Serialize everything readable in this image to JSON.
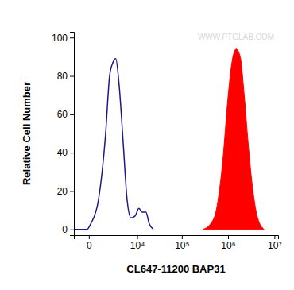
{
  "chart_data": {
    "type": "line",
    "x_label": "CL647-11200 BAP31",
    "y_label": "Relative Cell Number",
    "annotations": [
      "WWW.PTGLAB.COM"
    ],
    "log": "x",
    "x": [
      -1000,
      -600,
      -100,
      100,
      600,
      1300,
      1800,
      2300,
      2800,
      3500,
      4500,
      5700,
      7100,
      8900,
      11000,
      13000,
      16000,
      19000,
      23500,
      285000,
      422000,
      557000,
      764000,
      1009000,
      1230000,
      1500000,
      1830000,
      2230000,
      2710000,
      3440000,
      4350000,
      5980000
    ],
    "series": [
      {
        "color": "#1a1a8c",
        "type": "line",
        "values": [
          0,
          0,
          0,
          3,
          15,
          50,
          80,
          87,
          89,
          75,
          45,
          15,
          6,
          7,
          11,
          9,
          9,
          3,
          0,
          null,
          null,
          null,
          null,
          null,
          null,
          null,
          null,
          null,
          null,
          null,
          null,
          null
        ]
      },
      {
        "color": "#ff0000",
        "type": "area",
        "values": [
          null,
          null,
          null,
          null,
          null,
          null,
          null,
          null,
          null,
          null,
          null,
          null,
          null,
          null,
          null,
          null,
          null,
          null,
          null,
          0,
          3,
          10,
          35,
          70,
          88,
          94,
          90,
          70,
          45,
          20,
          6,
          0
        ]
      }
    ],
    "xlim": [
      -1100,
      12000000
    ],
    "xticks": [
      0,
      {
        "value": 10000,
        "label": "10⁴"
      },
      {
        "value": 100000,
        "label": "10⁵"
      },
      {
        "value": 1000000,
        "label": "10⁶"
      },
      {
        "value": 10000000,
        "label": "10⁷"
      }
    ],
    "ylim": [
      -3,
      103
    ],
    "yticks": [
      0,
      20,
      40,
      60,
      80,
      100
    ]
  }
}
